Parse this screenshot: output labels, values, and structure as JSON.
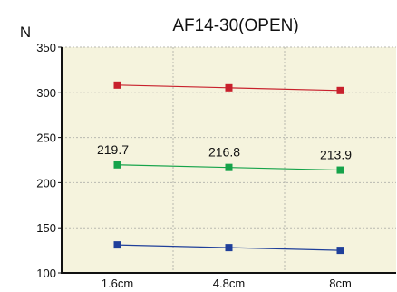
{
  "chart_data": {
    "type": "line",
    "title": "AF14-30(OPEN)",
    "ylabel": "N",
    "xlabel": "",
    "categories": [
      "1.6cm",
      "4.8cm",
      "8cm"
    ],
    "ylim": [
      100,
      350
    ],
    "yticks": [
      100,
      150,
      200,
      250,
      300,
      350
    ],
    "grid": true,
    "background_color": "#f5f3dd",
    "series": [
      {
        "color": "#c8202c",
        "marker": "square",
        "values": [
          308,
          305,
          302
        ]
      },
      {
        "color": "#16a34a",
        "marker": "square",
        "values": [
          219.7,
          216.8,
          213.9
        ],
        "data_labels": [
          "219.7",
          "216.8",
          "213.9"
        ]
      },
      {
        "color": "#1f3f9a",
        "marker": "square",
        "values": [
          131,
          128,
          125
        ]
      }
    ]
  }
}
